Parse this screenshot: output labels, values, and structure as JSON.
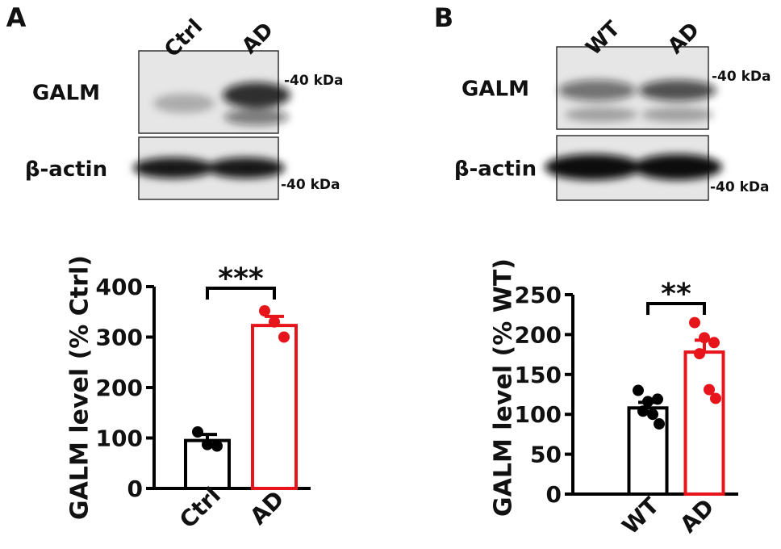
{
  "chart_data": [
    {
      "type": "bar",
      "panel": "A",
      "blot": {
        "lanes": [
          "Ctrl",
          "AD"
        ],
        "rows": [
          "GALM",
          "β-actin"
        ],
        "markers": [
          "-40 kDa",
          "-40 kDa"
        ]
      },
      "y_label": "GALM level (% Ctrl)",
      "significance": "***",
      "categories": [
        "Ctrl",
        "AD"
      ],
      "values": [
        95,
        323
      ],
      "errors": [
        12,
        18
      ],
      "points": [
        [
          112,
          87,
          84
        ],
        [
          352,
          330,
          300
        ]
      ],
      "colors": [
        "#000000",
        "#e8141b"
      ],
      "ylim": [
        0,
        400
      ],
      "yticks": [
        0,
        100,
        200,
        300,
        400
      ]
    },
    {
      "type": "bar",
      "panel": "B",
      "blot": {
        "lanes": [
          "WT",
          "AD"
        ],
        "rows": [
          "GALM",
          "β-actin"
        ],
        "markers": [
          "-40 kDa",
          "-40 kDa"
        ]
      },
      "y_label": "GALM level (% WT)",
      "significance": "**",
      "categories": [
        "WT",
        "AD"
      ],
      "values": [
        108,
        178
      ],
      "errors": [
        7,
        15
      ],
      "points": [
        [
          130,
          116,
          119,
          104,
          100,
          88
        ],
        [
          215,
          196,
          190,
          176,
          131,
          120
        ]
      ],
      "colors": [
        "#000000",
        "#e8141b"
      ],
      "ylim": [
        0,
        250
      ],
      "yticks": [
        0,
        50,
        100,
        150,
        200,
        250
      ]
    }
  ]
}
